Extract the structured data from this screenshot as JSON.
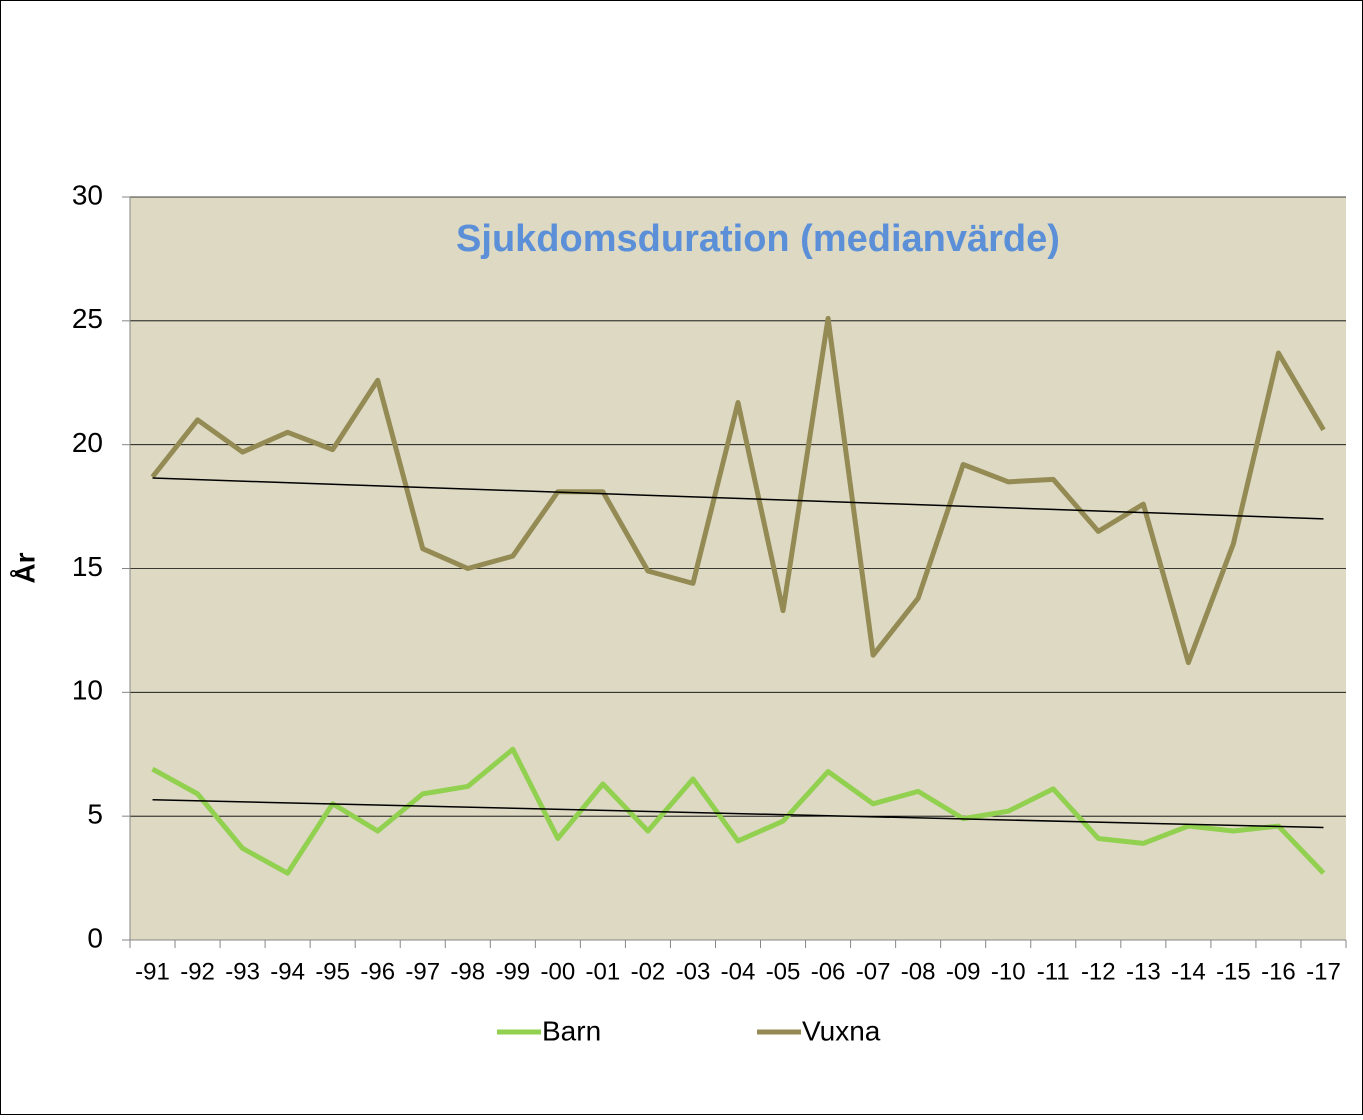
{
  "chart_data": {
    "type": "line",
    "title": "Sjukdomsduration (medianvärde)",
    "y_label": "År",
    "categories": [
      "-91",
      "-92",
      "-93",
      "-94",
      "-95",
      "-96",
      "-97",
      "-98",
      "-99",
      "-00",
      "-01",
      "-02",
      "-03",
      "-04",
      "-05",
      "-06",
      "-07",
      "-08",
      "-09",
      "-10",
      "-11",
      "-12",
      "-13",
      "-14",
      "-15",
      "-16",
      "-17"
    ],
    "series": [
      {
        "name": "Barn",
        "color": "#92d050",
        "values": [
          6.9,
          5.9,
          3.7,
          2.7,
          5.5,
          4.4,
          5.9,
          6.2,
          7.7,
          4.1,
          6.3,
          4.4,
          6.5,
          4.0,
          4.8,
          6.8,
          5.5,
          6.0,
          4.9,
          5.2,
          6.1,
          4.1,
          3.9,
          4.6,
          4.4,
          4.6,
          2.7
        ]
      },
      {
        "name": "Vuxna",
        "color": "#948a54",
        "values": [
          18.7,
          21.0,
          19.7,
          20.5,
          19.8,
          22.6,
          15.8,
          15.0,
          15.5,
          18.1,
          18.1,
          14.9,
          14.4,
          21.7,
          13.3,
          25.1,
          11.5,
          13.8,
          19.2,
          18.5,
          18.6,
          16.5,
          17.6,
          11.2,
          16.0,
          23.7,
          20.6
        ]
      }
    ],
    "ylim": [
      0,
      30
    ],
    "yticks": [
      0,
      5,
      10,
      15,
      20,
      25,
      30
    ],
    "grid": true,
    "trendline": true,
    "legend": "bottom"
  }
}
